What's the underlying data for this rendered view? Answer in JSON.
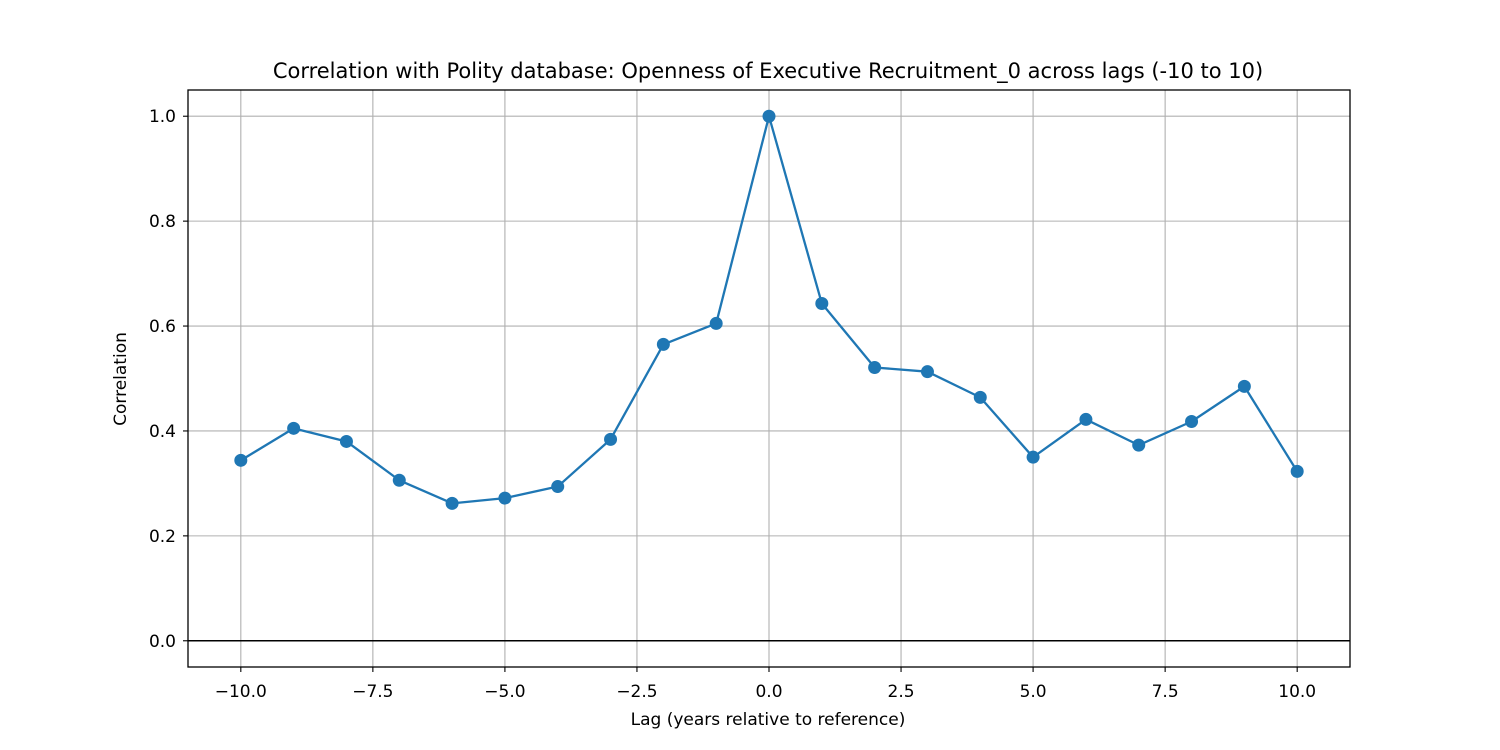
{
  "chart_data": {
    "type": "line",
    "title": "Correlation with Polity database: Openness of Executive Recruitment_0 across lags (-10 to 10)",
    "xlabel": "Lag (years relative to reference)",
    "ylabel": "Correlation",
    "xlim": [
      -11,
      11
    ],
    "ylim": [
      -0.05,
      1.05
    ],
    "xticks": [
      -10.0,
      -7.5,
      -5.0,
      -2.5,
      0.0,
      2.5,
      5.0,
      7.5,
      10.0
    ],
    "xtick_labels": [
      "−10.0",
      "−7.5",
      "−5.0",
      "−2.5",
      "0.0",
      "2.5",
      "5.0",
      "7.5",
      "10.0"
    ],
    "yticks": [
      0.0,
      0.2,
      0.4,
      0.6,
      0.8,
      1.0
    ],
    "ytick_labels": [
      "0.0",
      "0.2",
      "0.4",
      "0.6",
      "0.8",
      "1.0"
    ],
    "grid": true,
    "reference_line_y": 0,
    "x": [
      -10,
      -9,
      -8,
      -7,
      -6,
      -5,
      -4,
      -3,
      -2,
      -1,
      0,
      1,
      2,
      3,
      4,
      5,
      6,
      7,
      8,
      9,
      10
    ],
    "series": [
      {
        "values": [
          0.344,
          0.405,
          0.38,
          0.306,
          0.262,
          0.272,
          0.294,
          0.384,
          0.565,
          0.605,
          1.0,
          0.643,
          0.521,
          0.513,
          0.464,
          0.35,
          0.422,
          0.373,
          0.418,
          0.485,
          0.323
        ],
        "color": "#1f77b4",
        "marker": "circle"
      }
    ]
  }
}
